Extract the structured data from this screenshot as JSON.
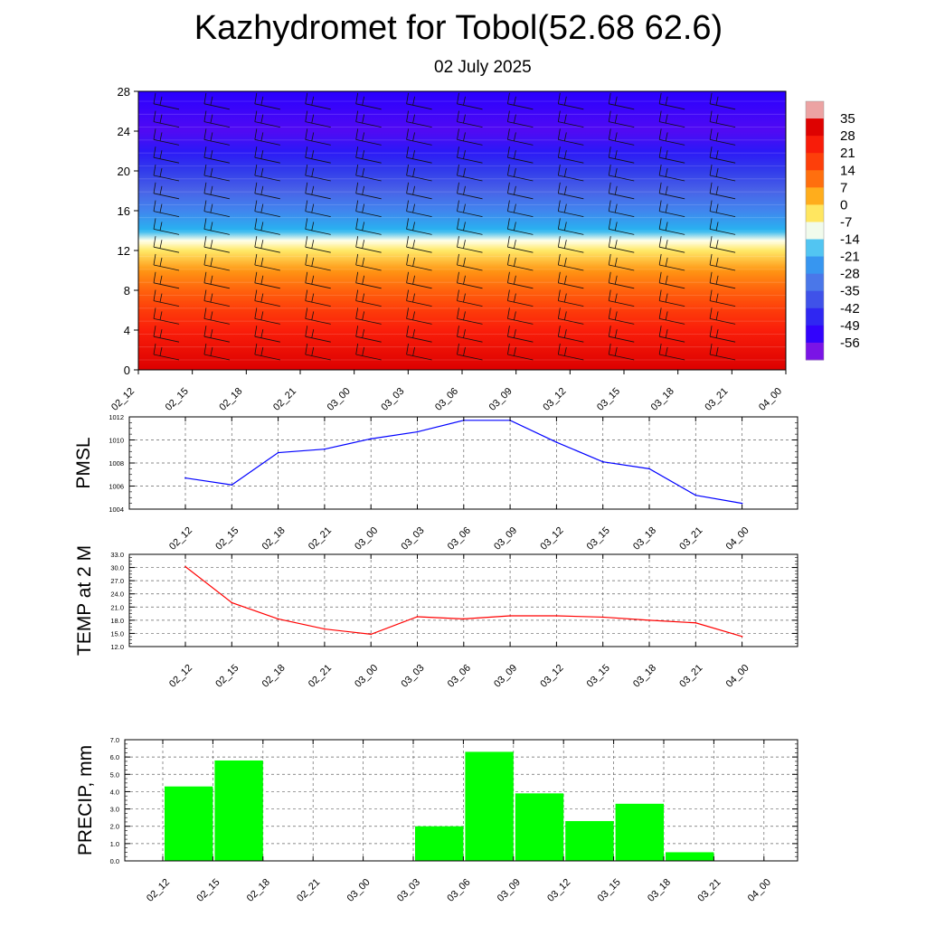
{
  "title": "Kazhydromet for Tobol(52.68 62.6)",
  "date": "02 July 2025",
  "times": [
    "02_12",
    "02_15",
    "02_18",
    "02_21",
    "03_00",
    "03_03",
    "03_06",
    "03_09",
    "03_12",
    "03_15",
    "03_18",
    "03_21",
    "04_00"
  ],
  "chart_data": [
    {
      "type": "heatmap",
      "xlabel": "",
      "ylabel": "",
      "ylim": [
        0,
        28
      ],
      "yticks": [
        "0",
        "4",
        "8",
        "12",
        "16",
        "20",
        "24",
        "28"
      ],
      "colorbar_labels": [
        "35",
        "28",
        "21",
        "14",
        "7",
        "0",
        "-7",
        "-14",
        "-21",
        "-28",
        "-35",
        "-42",
        "-49",
        "-56"
      ],
      "temperature_by_level": [
        {
          "level": 0,
          "value": 28
        },
        {
          "level": 2,
          "value": 24
        },
        {
          "level": 4,
          "value": 20
        },
        {
          "level": 6,
          "value": 14
        },
        {
          "level": 8,
          "value": 8
        },
        {
          "level": 10,
          "value": 2
        },
        {
          "level": 12,
          "value": -8
        },
        {
          "level": 13,
          "value": -14
        },
        {
          "level": 14,
          "value": -24
        },
        {
          "level": 16,
          "value": -32
        },
        {
          "level": 18,
          "value": -40
        },
        {
          "level": 20,
          "value": -46
        },
        {
          "level": 22,
          "value": -52
        },
        {
          "level": 24,
          "value": -58
        },
        {
          "level": 28,
          "value": -56
        }
      ]
    },
    {
      "type": "line",
      "ylabel": "PMSL",
      "ylim": [
        1004,
        1012
      ],
      "yticks": [
        "1004",
        "1006",
        "1008",
        "1010",
        "1012"
      ],
      "values": [
        1006.7,
        1006.1,
        1008.9,
        1009.2,
        1010.1,
        1010.7,
        1011.7,
        1011.7,
        1009.8,
        1008.1,
        1007.5,
        1005.2,
        1004.5
      ],
      "color": "#0000ff"
    },
    {
      "type": "line",
      "ylabel": "TEMP at 2 M",
      "ylim": [
        12,
        33
      ],
      "yticks": [
        "12.0",
        "15.0",
        "18.0",
        "21.0",
        "24.0",
        "27.0",
        "30.0",
        "33.0"
      ],
      "values": [
        30.2,
        22.0,
        18.3,
        16.0,
        14.8,
        18.8,
        18.3,
        19.0,
        19.0,
        18.7,
        18.0,
        17.4,
        14.3
      ],
      "color": "#ff0000"
    },
    {
      "type": "bar",
      "ylabel": "PRECIP, mm",
      "ylim": [
        0,
        7
      ],
      "yticks": [
        "0.0",
        "1.0",
        "2.0",
        "3.0",
        "4.0",
        "5.0",
        "6.0",
        "7.0"
      ],
      "values": [
        0,
        4.3,
        5.8,
        0,
        0,
        0,
        2.0,
        6.3,
        3.9,
        2.3,
        3.3,
        0.5,
        0
      ],
      "color": "#00ff00"
    }
  ]
}
